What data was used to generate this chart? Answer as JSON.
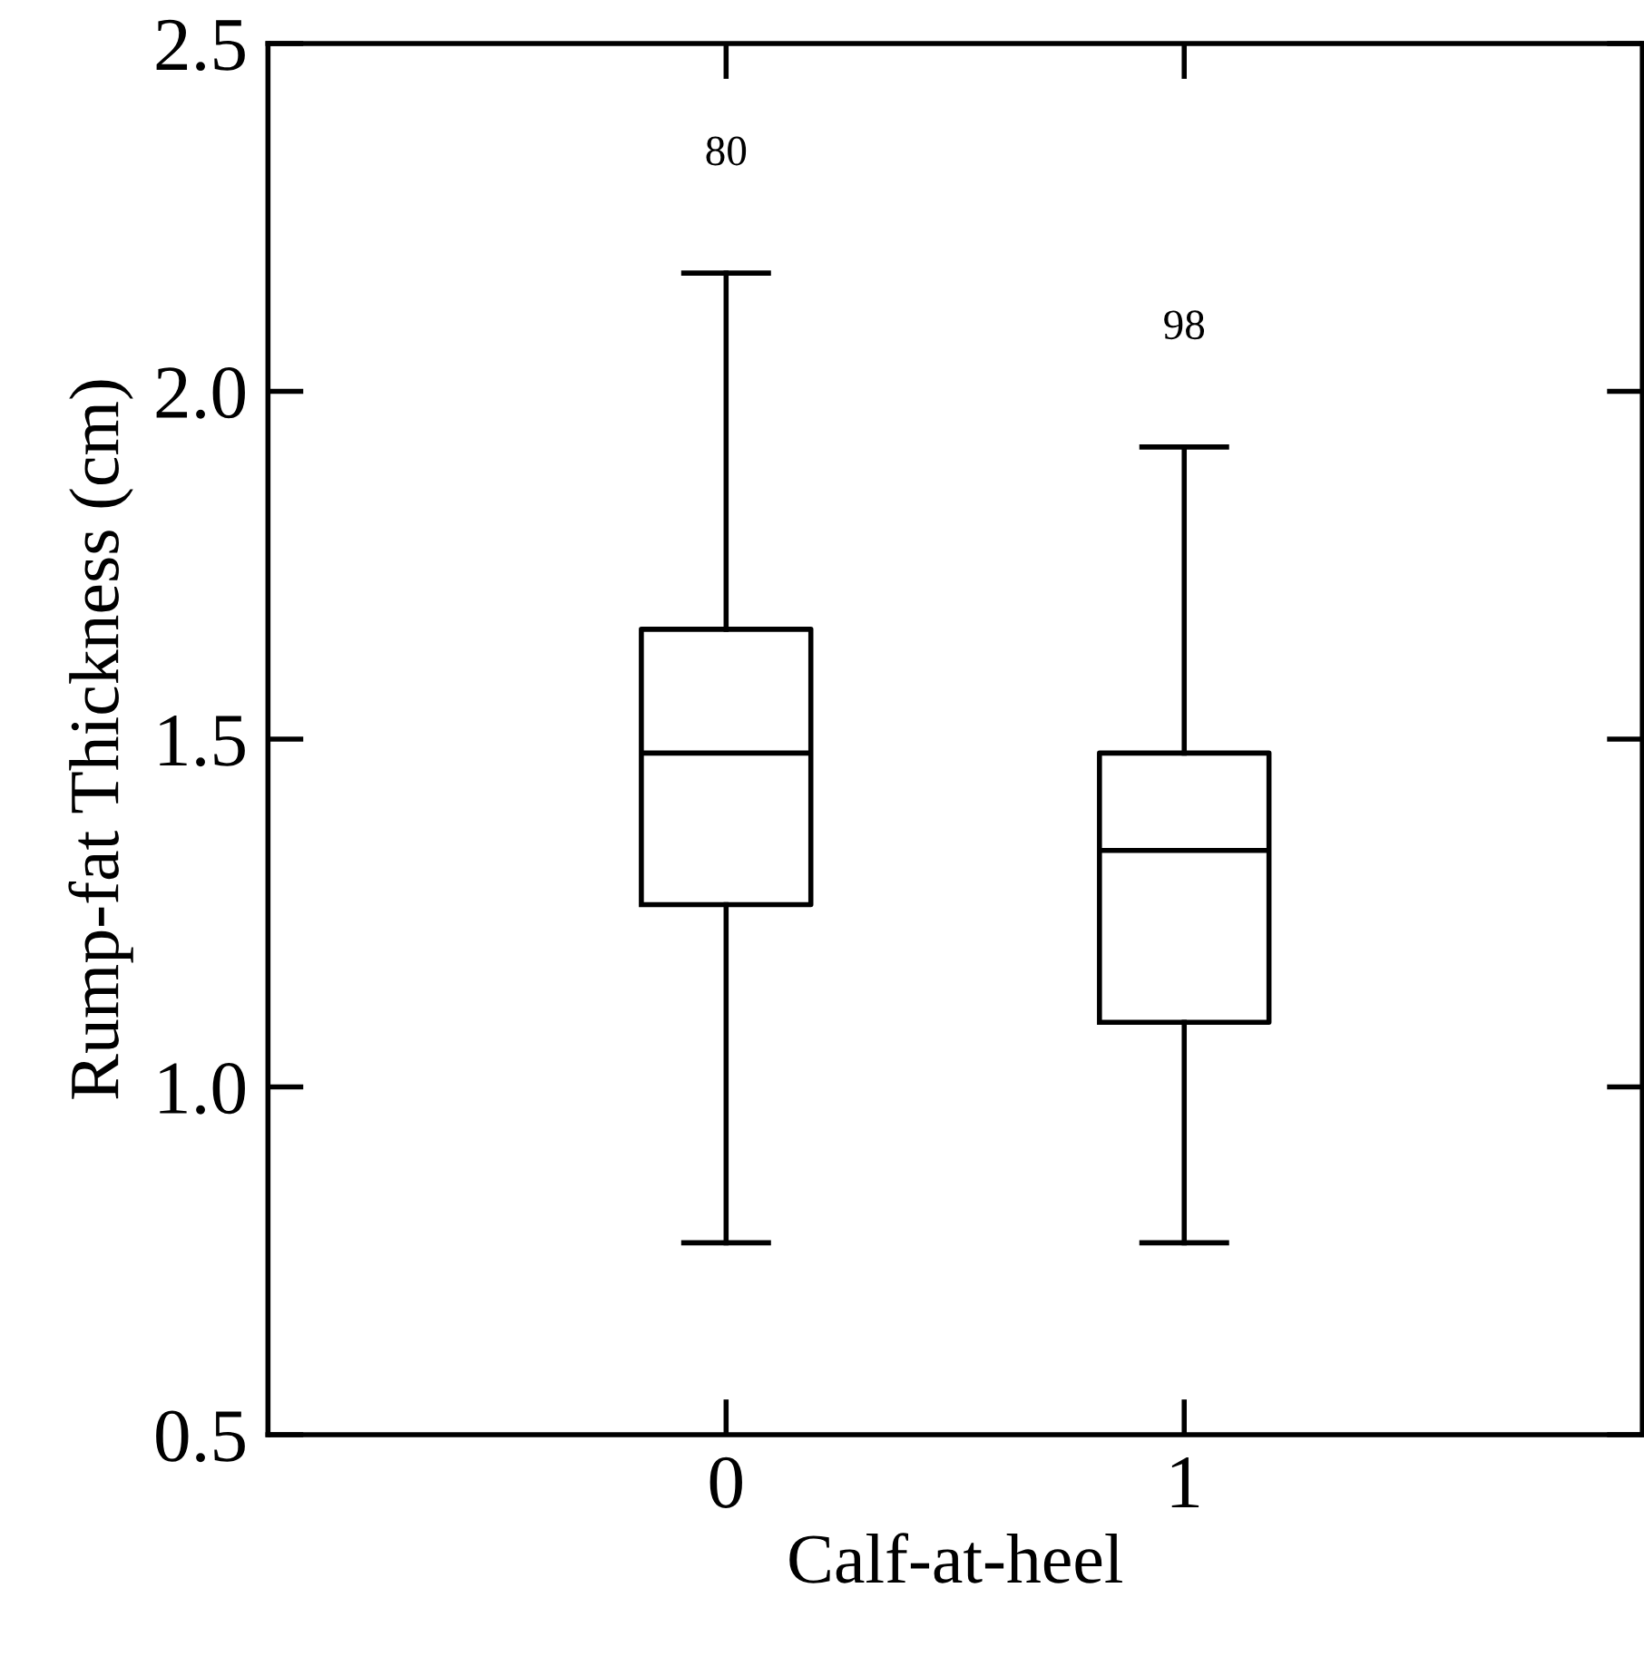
{
  "chart_data": {
    "type": "box",
    "xlabel": "Calf-at-heel",
    "ylabel": "Rump-fat Thickness (cm)",
    "categories": [
      "0",
      "1"
    ],
    "boxes": [
      {
        "low": 0.776,
        "q1": 1.262,
        "median": 1.48,
        "q3": 1.658,
        "high": 2.17
      },
      {
        "low": 0.776,
        "q1": 1.093,
        "median": 1.34,
        "q3": 1.48,
        "high": 1.92
      }
    ],
    "color": "#000000",
    "ylim": [
      0.5,
      2.5
    ],
    "yticks": [
      {
        "value": 0.5,
        "label": "0.5"
      },
      {
        "value": 1.0,
        "label": "1.0"
      },
      {
        "value": 1.5,
        "label": "1.5"
      },
      {
        "value": 2.0,
        "label": "2.0"
      },
      {
        "value": 2.5,
        "label": "2.5"
      }
    ],
    "grid": false,
    "annotations": [
      "80",
      "98"
    ]
  }
}
